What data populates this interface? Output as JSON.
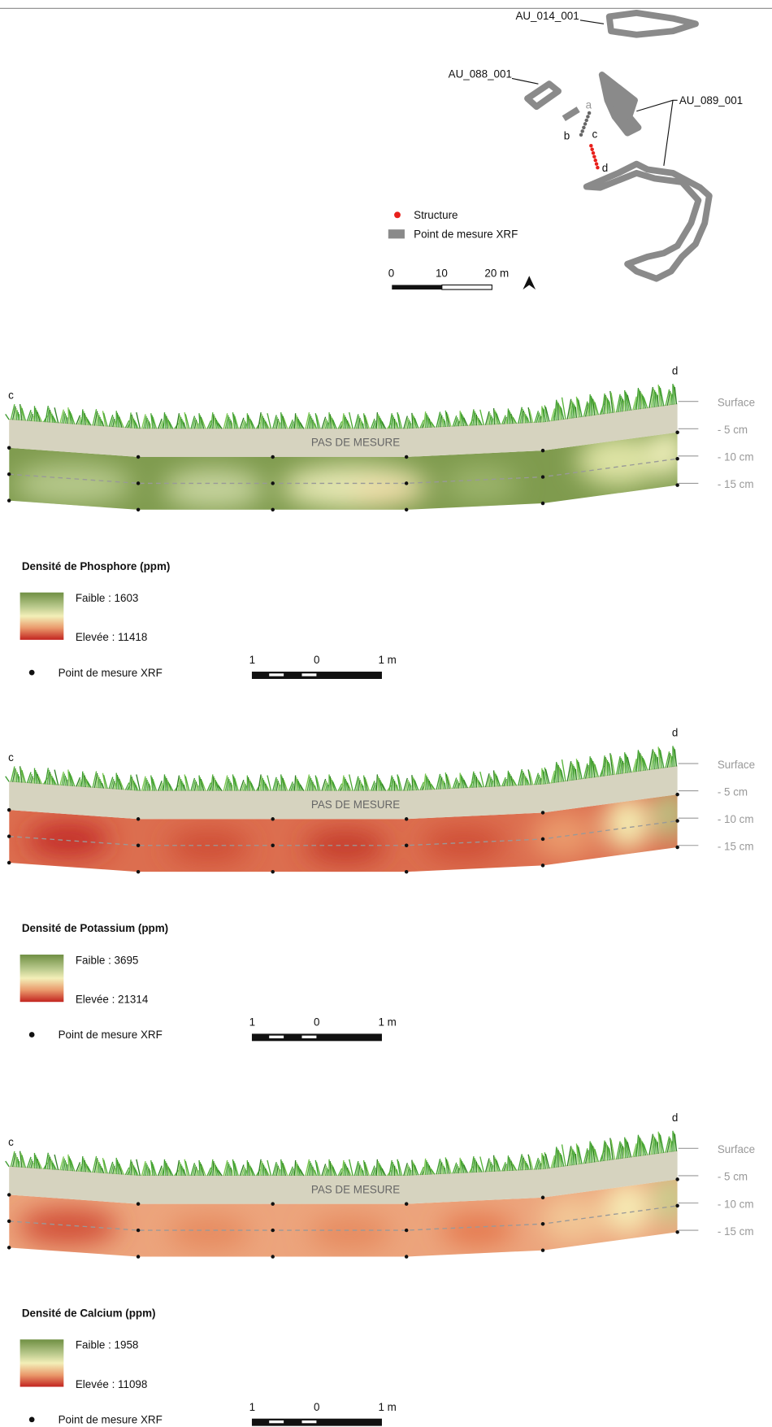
{
  "map": {
    "labels": [
      "AU_014_001",
      "AU_088_001",
      "AU_089_001"
    ],
    "points": [
      "a",
      "b",
      "c",
      "d"
    ],
    "legend": [
      "Structure",
      "Point de mesure XRF"
    ],
    "scale": [
      "0",
      "10",
      "20 m"
    ]
  },
  "profiles": [
    {
      "start": "c",
      "end": "d",
      "depths": [
        "Surface",
        "- 5 cm",
        "- 10 cm",
        "- 15 cm"
      ],
      "no_data": "PAS DE MESURE",
      "title": "Densité de Phosphore (ppm)",
      "low": "Faible : 1603",
      "high": "Elevée : 11418",
      "point_legend": "Point de mesure XRF",
      "scale": [
        "1",
        "0",
        "1 m"
      ]
    },
    {
      "start": "c",
      "end": "d",
      "depths": [
        "Surface",
        "- 5 cm",
        "- 10 cm",
        "- 15 cm"
      ],
      "no_data": "PAS DE MESURE",
      "title": "Densité de Potassium (ppm)",
      "low": "Faible : 3695",
      "high": "Elevée : 21314",
      "point_legend": "Point de mesure XRF",
      "scale": [
        "1",
        "0",
        "1 m"
      ]
    },
    {
      "start": "c",
      "end": "d",
      "depths": [
        "Surface",
        "- 5 cm",
        "- 10 cm",
        "- 15 cm"
      ],
      "no_data": "PAS DE MESURE",
      "title": "Densité de Calcium (ppm)",
      "low": "Faible : 1958",
      "high": "Elevée : 11098",
      "point_legend": "Point de mesure XRF",
      "scale": [
        "1",
        "0",
        "1 m"
      ]
    }
  ]
}
